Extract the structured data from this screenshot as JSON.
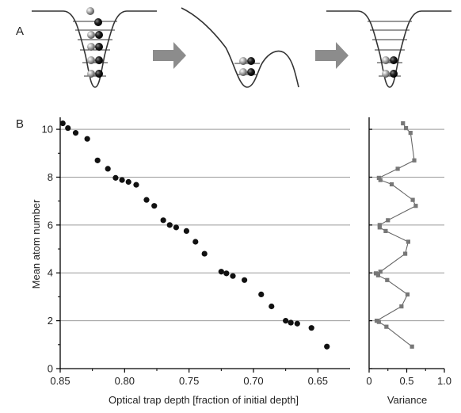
{
  "figure": {
    "panel_a_label": "A",
    "panel_b_label": "B"
  },
  "panel_a": {
    "wells": [
      {
        "light_balls": 1,
        "dark_balls": 1,
        "paired_levels": 4,
        "levels": 6
      },
      {
        "pairs": 2
      },
      {
        "pairs": 2,
        "levels": 6
      }
    ],
    "arrows": 2,
    "colors": {
      "arrow": "#8c8c8c",
      "well": "#333333",
      "ball_dark": "#111111",
      "ball_light": "#b8b8b8"
    }
  },
  "chart_data": [
    {
      "type": "scatter",
      "xlabel": "Optical trap depth [fraction of initial depth]",
      "ylabel": "Mean atom number",
      "xlim": [
        0.85,
        0.625
      ],
      "ylim": [
        0,
        10.5
      ],
      "x_ticks": [
        "0.85",
        "0.80",
        "0.75",
        "0.70",
        "0.65"
      ],
      "x_tick_values": [
        0.85,
        0.8,
        0.75,
        0.7,
        0.65
      ],
      "y_ticks": [
        "0",
        "2",
        "4",
        "6",
        "8",
        "10"
      ],
      "y_tick_values": [
        0,
        2,
        4,
        6,
        8,
        10
      ],
      "grid_y": [
        2,
        4,
        6,
        8,
        10
      ],
      "marker_color": "#111111",
      "points": [
        [
          0.848,
          10.25
        ],
        [
          0.844,
          10.05
        ],
        [
          0.838,
          9.85
        ],
        [
          0.829,
          9.6
        ],
        [
          0.821,
          8.7
        ],
        [
          0.813,
          8.35
        ],
        [
          0.807,
          7.97
        ],
        [
          0.802,
          7.88
        ],
        [
          0.797,
          7.8
        ],
        [
          0.791,
          7.68
        ],
        [
          0.783,
          7.05
        ],
        [
          0.777,
          6.8
        ],
        [
          0.77,
          6.2
        ],
        [
          0.765,
          6.0
        ],
        [
          0.76,
          5.9
        ],
        [
          0.752,
          5.75
        ],
        [
          0.745,
          5.3
        ],
        [
          0.738,
          4.8
        ],
        [
          0.725,
          4.05
        ],
        [
          0.721,
          3.98
        ],
        [
          0.716,
          3.87
        ],
        [
          0.707,
          3.7
        ],
        [
          0.694,
          3.1
        ],
        [
          0.686,
          2.6
        ],
        [
          0.675,
          2.0
        ],
        [
          0.671,
          1.92
        ],
        [
          0.666,
          1.88
        ],
        [
          0.655,
          1.7
        ],
        [
          0.643,
          0.92
        ]
      ]
    },
    {
      "type": "line",
      "xlabel": "Variance",
      "xlim": [
        0,
        1.0
      ],
      "ylim": [
        0,
        10.5
      ],
      "x_ticks": [
        "0",
        "0.5",
        "1.0"
      ],
      "x_tick_values": [
        0,
        0.5,
        1.0
      ],
      "grid_y": [
        2,
        4,
        6,
        8,
        10
      ],
      "marker_color": "#777777",
      "points": [
        [
          0.45,
          10.25
        ],
        [
          0.49,
          10.05
        ],
        [
          0.55,
          9.85
        ],
        [
          0.6,
          8.7
        ],
        [
          0.38,
          8.35
        ],
        [
          0.13,
          7.97
        ],
        [
          0.15,
          7.88
        ],
        [
          0.3,
          7.7
        ],
        [
          0.58,
          7.05
        ],
        [
          0.62,
          6.8
        ],
        [
          0.25,
          6.2
        ],
        [
          0.14,
          6.0
        ],
        [
          0.14,
          5.9
        ],
        [
          0.22,
          5.75
        ],
        [
          0.52,
          5.3
        ],
        [
          0.48,
          4.8
        ],
        [
          0.15,
          4.05
        ],
        [
          0.09,
          3.98
        ],
        [
          0.12,
          3.9
        ],
        [
          0.24,
          3.7
        ],
        [
          0.51,
          3.1
        ],
        [
          0.43,
          2.6
        ],
        [
          0.1,
          2.0
        ],
        [
          0.13,
          1.95
        ],
        [
          0.23,
          1.75
        ],
        [
          0.57,
          0.92
        ]
      ]
    }
  ]
}
